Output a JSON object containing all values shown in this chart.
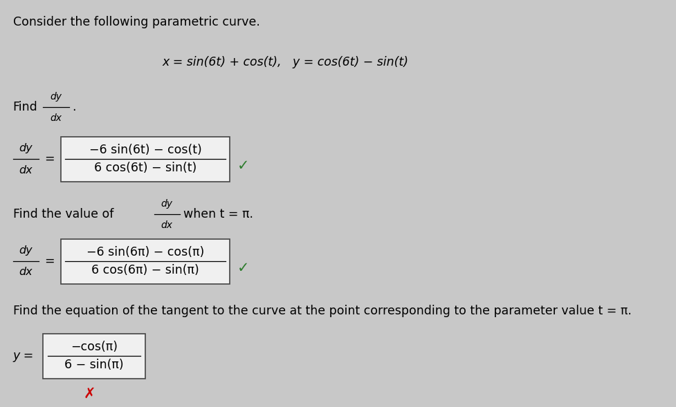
{
  "bg_color": "#c8c8c8",
  "text_color": "#000000",
  "title_line": "Consider the following parametric curve.",
  "parametric_line": "x = sin(6t) + cos(t),   y = cos(6t) − sin(t)",
  "box1_num": "−6 sin(6t) − cos(t)",
  "box1_den": "6 cos(6t) − sin(t)",
  "box2_num": "−6 sin(6π) − cos(π)",
  "box2_den": "6 cos(6π) − sin(π)",
  "find_tangent_label": "Find the equation of the tangent to the curve at the point corresponding to the parameter value t = π.",
  "box3_num": "−cos(π)",
  "box3_den": "6 − sin(π)",
  "check_color": "#2e7d2e",
  "cross_color": "#cc0000",
  "box_edge_color": "#444444",
  "box_fill_color": "#f0f0f0",
  "when_t_pi": "when t = π.",
  "figw": 9.78,
  "figh": 5.89,
  "dpi": 100
}
